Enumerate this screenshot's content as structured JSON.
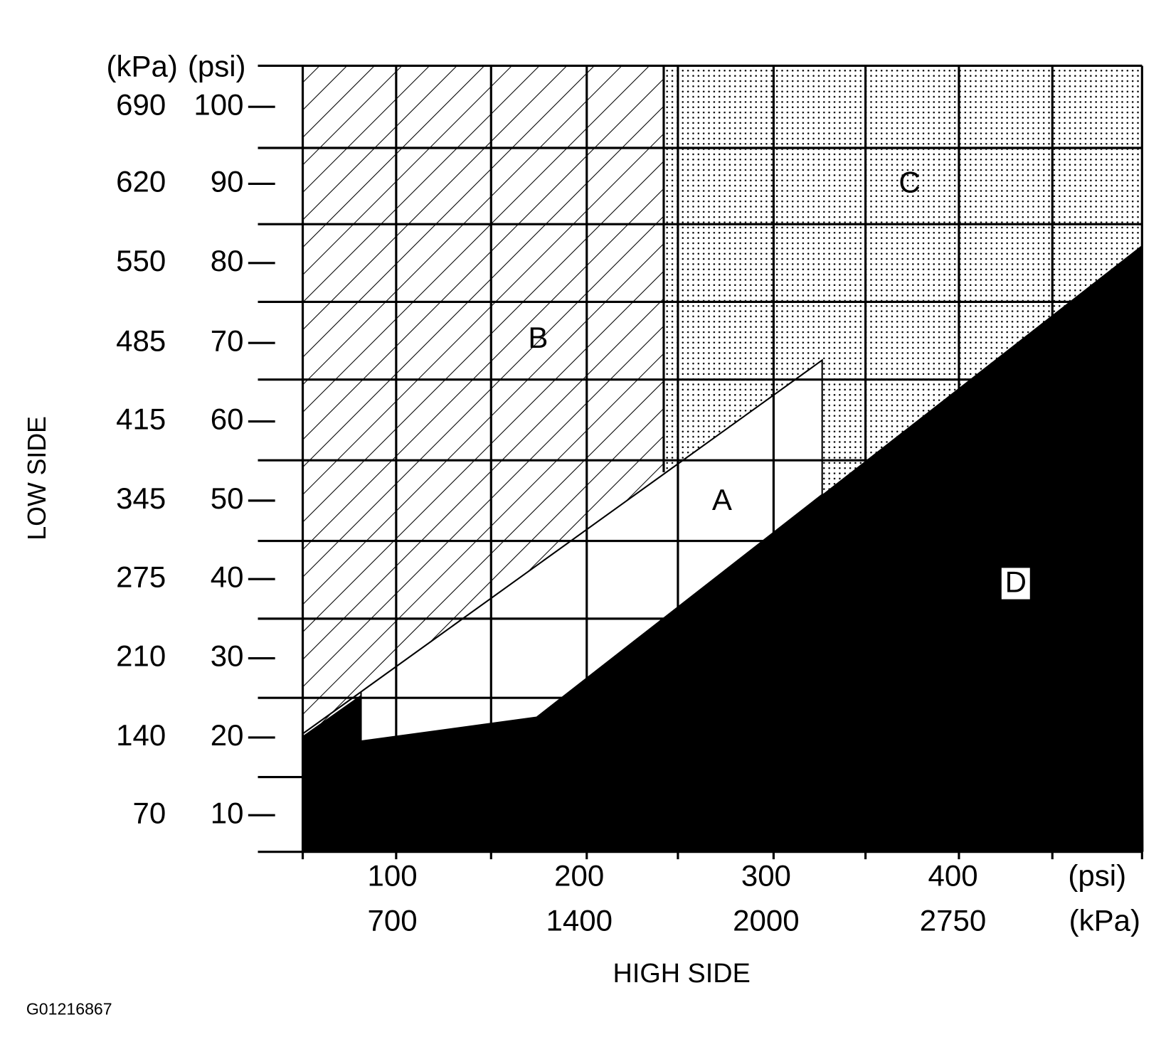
{
  "y_axis": {
    "title": "LOW SIDE",
    "unit_kpa": "(kPa)",
    "unit_psi": "(psi)",
    "ticks": [
      {
        "kpa": 690,
        "psi": 100
      },
      {
        "kpa": 620,
        "psi": 90
      },
      {
        "kpa": 550,
        "psi": 80
      },
      {
        "kpa": 485,
        "psi": 70
      },
      {
        "kpa": 415,
        "psi": 60
      },
      {
        "kpa": 345,
        "psi": 50
      },
      {
        "kpa": 275,
        "psi": 40
      },
      {
        "kpa": 210,
        "psi": 30
      },
      {
        "kpa": 140,
        "psi": 20
      },
      {
        "kpa": 70,
        "psi": 10
      }
    ]
  },
  "x_axis": {
    "title": "HIGH SIDE",
    "unit_psi": "(psi)",
    "unit_kpa": "(kPa)",
    "ticks": [
      {
        "psi": 100,
        "kpa": 700
      },
      {
        "psi": 200,
        "kpa": 1400
      },
      {
        "psi": 300,
        "kpa": 2000
      },
      {
        "psi": 400,
        "kpa": 2750
      }
    ]
  },
  "regions": [
    {
      "label": "A"
    },
    {
      "label": "B"
    },
    {
      "label": "C"
    },
    {
      "label": "D"
    }
  ],
  "figure_id": "G01216867"
}
